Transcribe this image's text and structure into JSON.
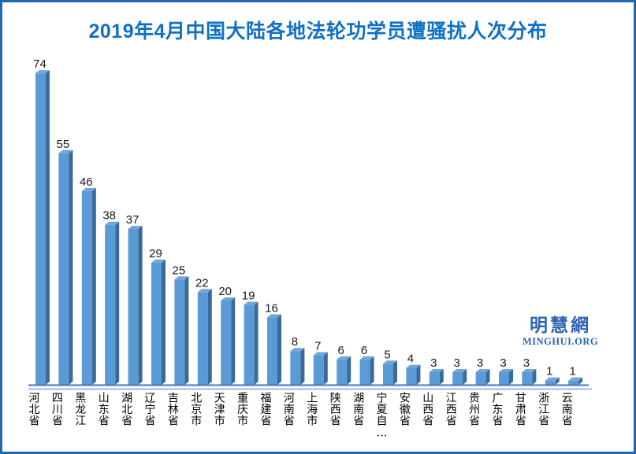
{
  "title": "2019年4月中国大陆各地法轮功学员遭骚扰人次分布",
  "watermark": {
    "cjk": "明慧網",
    "latin": "MINGHUI.ORG"
  },
  "colors": {
    "title": "#0f70c8",
    "border": "#2166b0",
    "watermark": "#2d65b3",
    "bar_front": "#5b9bd5",
    "bar_side": "#3a6a99",
    "bar_top": "#71a6d8",
    "axis_line": "#4472c4",
    "floor_line": "#9db9e0",
    "value_label": "#1a1a1a",
    "category_label": "#000000"
  },
  "chart_data": {
    "type": "bar",
    "title": "2019年4月中国大陆各地法轮功学员遭骚扰人次分布",
    "xlabel": "",
    "ylabel": "",
    "ylim": [
      0,
      80
    ],
    "grid": false,
    "legend": false,
    "effect": "3d",
    "categories": [
      "河北省",
      "四川省",
      "黑龙江",
      "山东省",
      "湖北省",
      "辽宁省",
      "吉林省",
      "北京市",
      "天津市",
      "重庆市",
      "福建省",
      "河南省",
      "上海市",
      "陕西省",
      "湖南省",
      "宁夏自…",
      "安徽省",
      "山西省",
      "江西省",
      "贵州省",
      "广东省",
      "甘肃省",
      "浙江省",
      "云南省"
    ],
    "values": [
      74,
      55,
      46,
      38,
      37,
      29,
      25,
      22,
      20,
      19,
      16,
      8,
      7,
      6,
      6,
      5,
      4,
      3,
      3,
      3,
      3,
      3,
      1,
      1
    ]
  }
}
